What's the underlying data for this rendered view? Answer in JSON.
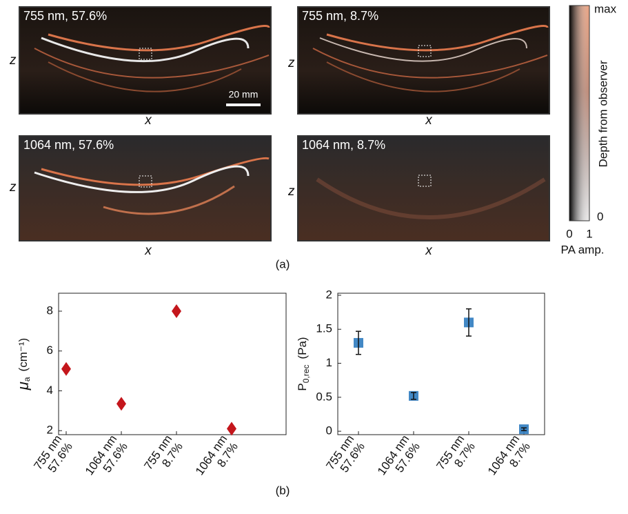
{
  "figure": {
    "panels": [
      {
        "label": "755 nm, 57.6%",
        "z_label": "z",
        "x_label": "x"
      },
      {
        "label": "755 nm, 8.7%",
        "z_label": "z",
        "x_label": "x"
      },
      {
        "label": "1064 nm, 57.6%",
        "z_label": "z",
        "x_label": "x"
      },
      {
        "label": "1064 nm, 8.7%",
        "z_label": "z",
        "x_label": "x"
      }
    ],
    "scale_bar": "20 mm",
    "colorbar": {
      "top": "max",
      "bottom": "0",
      "title": "Depth from observer",
      "x_min": "0",
      "x_max": "1",
      "x_title": "PA amp."
    },
    "caption_a": "(a)",
    "caption_b": "(b)"
  },
  "chart_data": [
    {
      "type": "scatter",
      "marker": "diamond",
      "color": "#c4161c",
      "ylabel": {
        "main": "μ",
        "sub": "a",
        "unit": "(cm⁻¹)"
      },
      "categories": [
        [
          "755 nm",
          "57.6%"
        ],
        [
          "1064 nm",
          "57.6%"
        ],
        [
          "755 nm",
          "8.7%"
        ],
        [
          "1064 nm",
          "8.7%"
        ]
      ],
      "values": [
        5.1,
        3.35,
        8.0,
        2.1
      ],
      "ylim": [
        1.8,
        8.9
      ],
      "yticks": [
        2,
        4,
        6,
        8
      ]
    },
    {
      "type": "scatter",
      "marker": "square",
      "color": "#2e7bbf",
      "ylabel": {
        "main": "P",
        "sub": "0,rec",
        "unit": "(Pa)"
      },
      "categories": [
        [
          "755 nm",
          "57.6%"
        ],
        [
          "1064 nm",
          "57.6%"
        ],
        [
          "755 nm",
          "8.7%"
        ],
        [
          "1064 nm",
          "8.7%"
        ]
      ],
      "values": [
        1.3,
        0.52,
        1.6,
        0.03
      ],
      "errors": [
        0.17,
        0.05,
        0.2,
        0.02
      ],
      "ylim": [
        -0.05,
        2.03
      ],
      "yticks": [
        0,
        0.5,
        1,
        1.5,
        2
      ]
    }
  ]
}
